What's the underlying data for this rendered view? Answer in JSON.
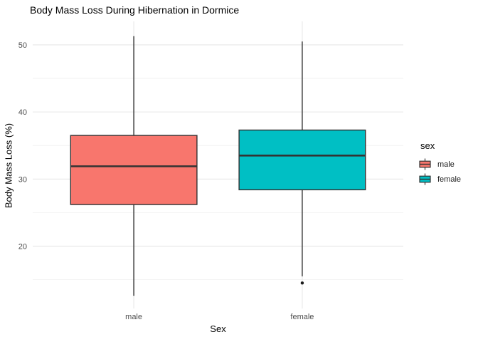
{
  "title": "Body Mass Loss During Hibernation in Dormice",
  "axes": {
    "x": {
      "label": "Sex"
    },
    "y": {
      "label": "Body Mass Loss (%)",
      "ticks": [
        20,
        30,
        40,
        50
      ],
      "minor_ticks": [
        15,
        25,
        35,
        45
      ]
    }
  },
  "legend": {
    "title": "sex",
    "items": [
      {
        "label": "male",
        "color": "#F8766D"
      },
      {
        "label": "female",
        "color": "#00BFC4"
      }
    ],
    "position": "right"
  },
  "colors": {
    "male_fill": "#F8766D",
    "female_fill": "#00BFC4",
    "box_stroke": "#333333",
    "outlier": "#1a1a1a",
    "grid_major": "#e7e7e7",
    "grid_minor": "#f2f2f2",
    "axis_text": "#4d4d4d",
    "background": "#ffffff"
  },
  "chart_data": {
    "type": "boxplot",
    "title": "Body Mass Loss During Hibernation in Dormice",
    "xlabel": "Sex",
    "ylabel": "Body Mass Loss (%)",
    "categories": [
      "male",
      "female"
    ],
    "series": [
      {
        "name": "male",
        "color": "#F8766D",
        "whisker_low": 12.6,
        "q1": 26.2,
        "median": 31.9,
        "q3": 36.5,
        "whisker_high": 51.3,
        "outliers": []
      },
      {
        "name": "female",
        "color": "#00BFC4",
        "whisker_low": 15.5,
        "q1": 28.4,
        "median": 33.5,
        "q3": 37.3,
        "whisker_high": 50.5,
        "outliers": [
          14.5
        ]
      }
    ],
    "ylim": [
      10.7,
      53.5
    ],
    "y_major_ticks": [
      20,
      30,
      40,
      50
    ],
    "y_minor_ticks": [
      15,
      25,
      35,
      45
    ],
    "grid": true,
    "legend_position": "right"
  }
}
